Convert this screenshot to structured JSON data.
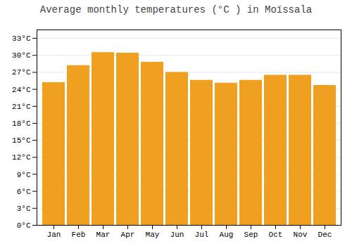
{
  "chart_data": {
    "type": "bar",
    "title": "Average monthly temperatures (°C ) in Moïssala",
    "categories": [
      "Jan",
      "Feb",
      "Mar",
      "Apr",
      "May",
      "Jun",
      "Jul",
      "Aug",
      "Sep",
      "Oct",
      "Nov",
      "Dec"
    ],
    "values": [
      25.2,
      28.2,
      30.5,
      30.4,
      28.8,
      27.0,
      25.6,
      25.1,
      25.6,
      26.5,
      26.5,
      24.7
    ],
    "color": "#F0A020",
    "ylim": [
      0,
      34.5
    ],
    "yticks": [
      {
        "value": 0,
        "label": "0°C"
      },
      {
        "value": 3,
        "label": "3°C"
      },
      {
        "value": 6,
        "label": "6°C"
      },
      {
        "value": 9,
        "label": "9°C"
      },
      {
        "value": 12,
        "label": "12°C"
      },
      {
        "value": 15,
        "label": "15°C"
      },
      {
        "value": 18,
        "label": "18°C"
      },
      {
        "value": 21,
        "label": "21°C"
      },
      {
        "value": 24,
        "label": "24°C"
      },
      {
        "value": 27,
        "label": "27°C"
      },
      {
        "value": 30,
        "label": "30°C"
      },
      {
        "value": 33,
        "label": "33°C"
      }
    ],
    "grid": true
  }
}
